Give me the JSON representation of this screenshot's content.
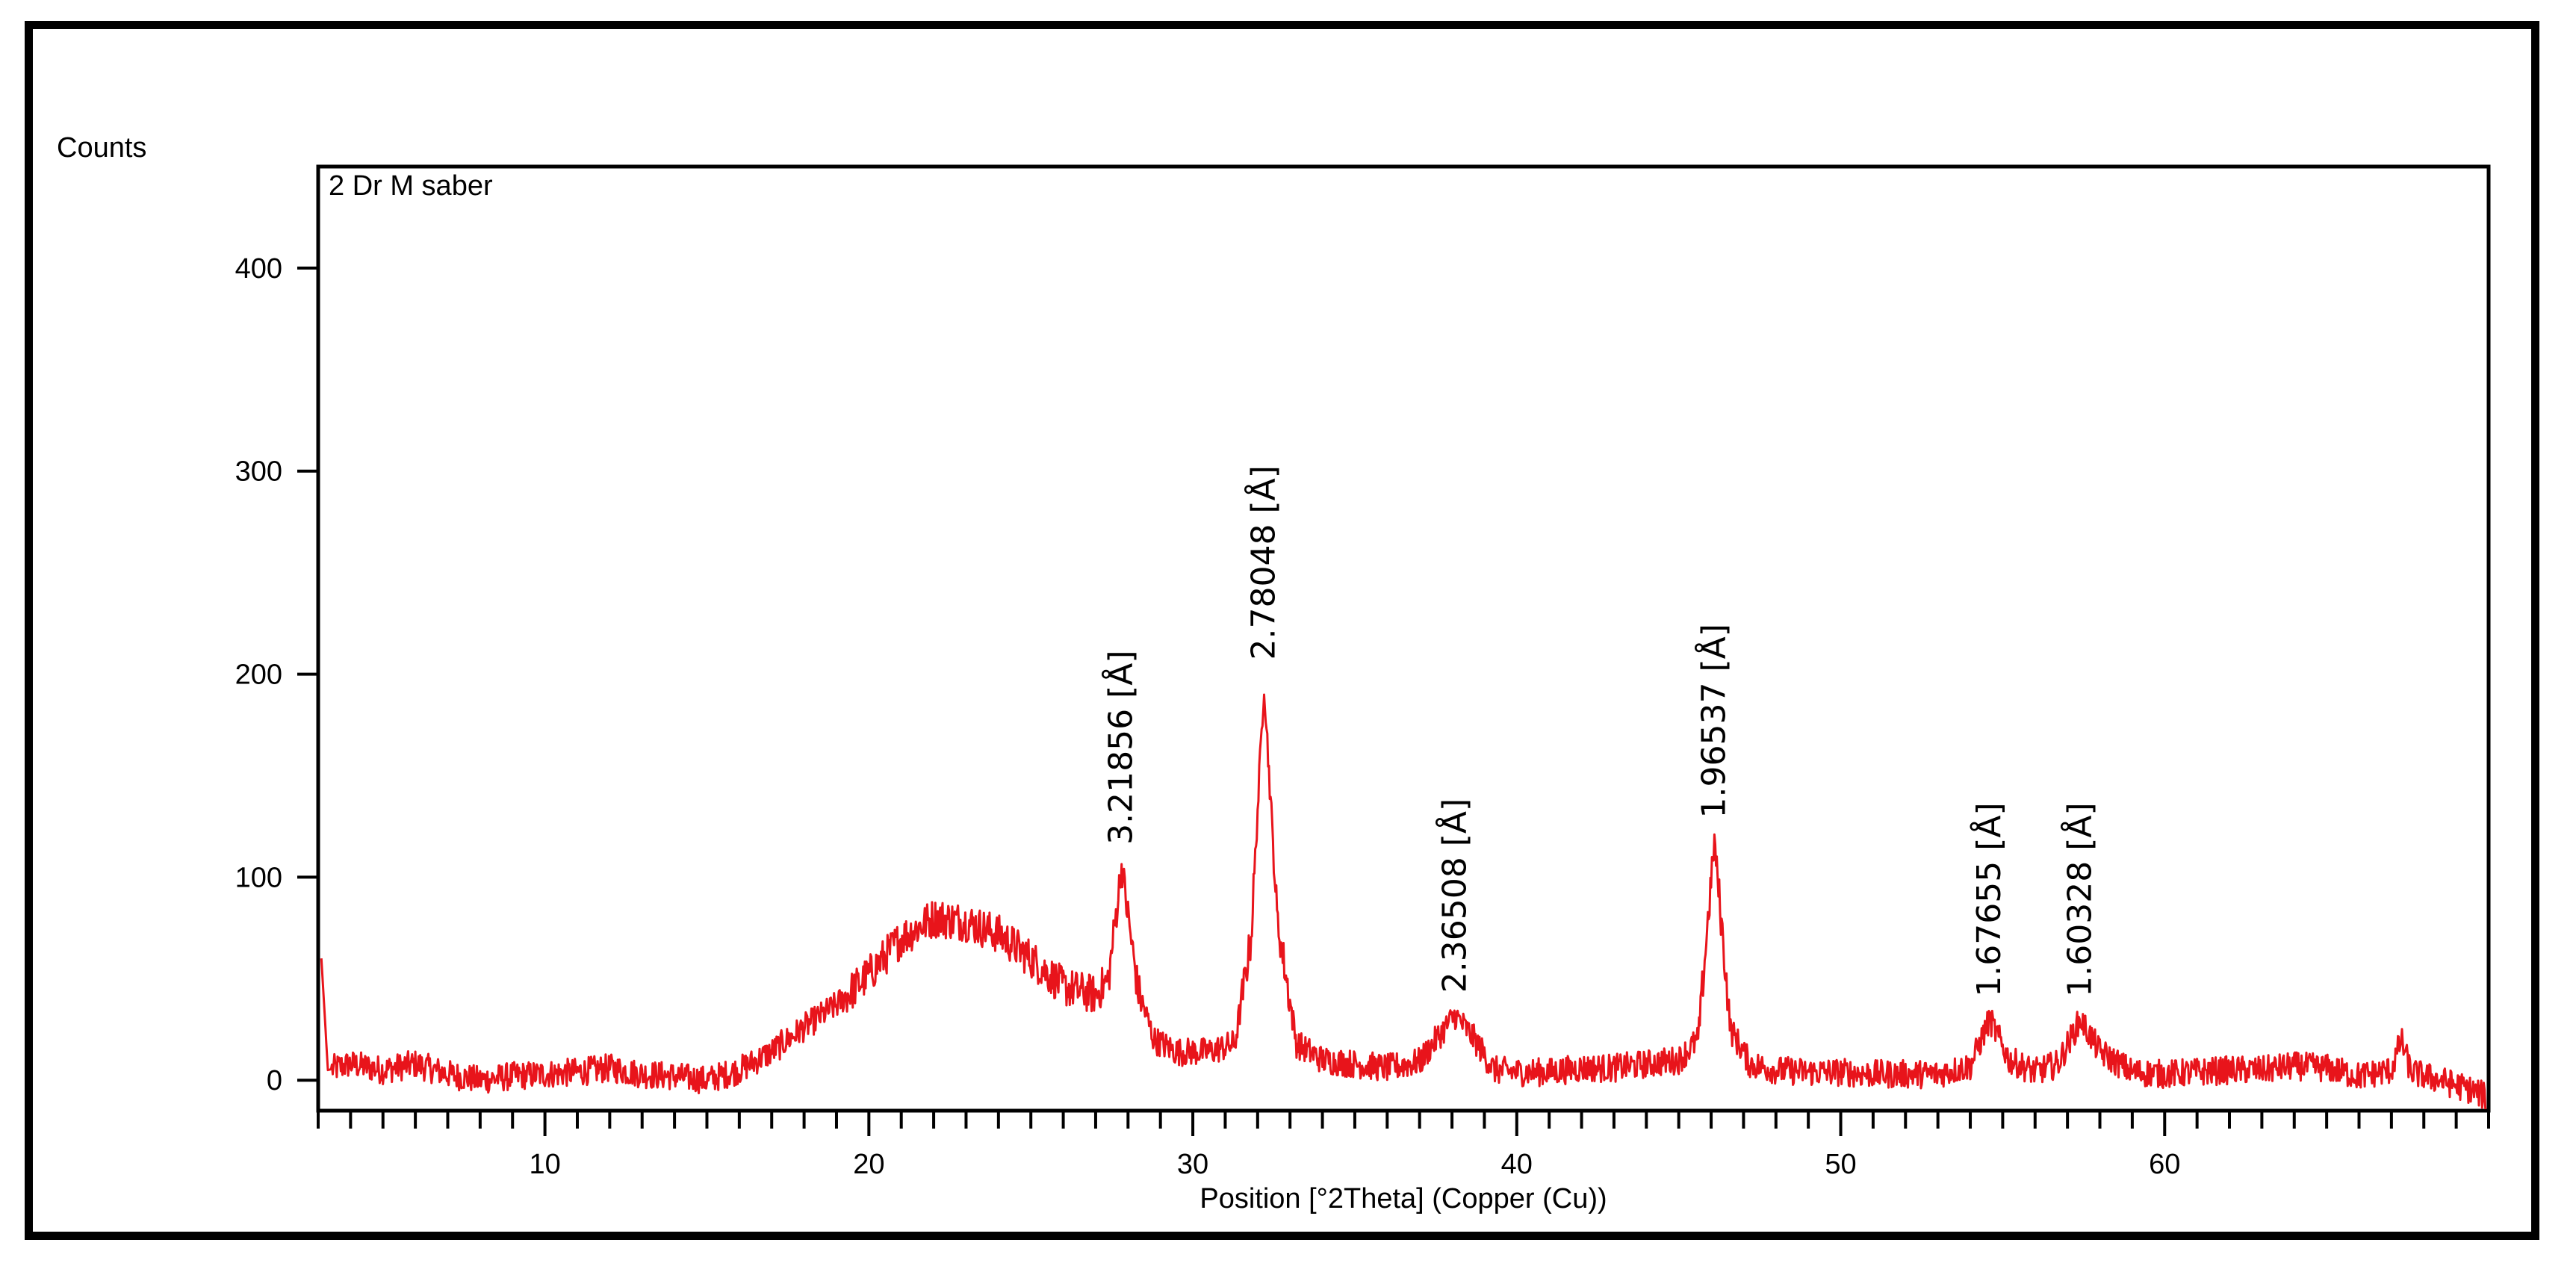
{
  "chart_data": {
    "type": "line",
    "ylabel": "Counts",
    "xlabel": "Position [°2Theta] (Copper (Cu))",
    "sample_name": "2 Dr M saber",
    "xlim": [
      3,
      70
    ],
    "ylim": [
      -15,
      450
    ],
    "x_ticks": [
      10,
      20,
      30,
      40,
      50,
      60
    ],
    "y_ticks": [
      0,
      100,
      200,
      300,
      400
    ],
    "x_tick_labels": [
      "10",
      "20",
      "30",
      "40",
      "50",
      "60"
    ],
    "y_tick_labels": [
      "0",
      "100",
      "200",
      "300",
      "400"
    ],
    "line_color": "#e8141b",
    "grid": false,
    "baseline": [
      [
        3.1,
        60
      ],
      [
        3.3,
        5
      ],
      [
        4,
        8
      ],
      [
        5,
        5
      ],
      [
        6,
        8
      ],
      [
        7,
        3
      ],
      [
        8,
        0
      ],
      [
        9,
        2
      ],
      [
        10,
        3
      ],
      [
        11,
        4
      ],
      [
        12,
        6
      ],
      [
        13,
        3
      ],
      [
        14,
        2
      ],
      [
        15,
        0
      ],
      [
        16,
        5
      ],
      [
        17,
        14
      ],
      [
        18,
        26
      ],
      [
        19,
        37
      ],
      [
        20,
        52
      ],
      [
        21,
        70
      ],
      [
        22,
        80
      ],
      [
        23,
        78
      ],
      [
        24,
        72
      ],
      [
        25,
        60
      ],
      [
        26,
        46
      ],
      [
        27,
        42
      ],
      [
        27.4,
        50
      ],
      [
        27.8,
        105
      ],
      [
        28.3,
        45
      ],
      [
        28.8,
        20
      ],
      [
        29.5,
        14
      ],
      [
        30.5,
        14
      ],
      [
        31.3,
        18
      ],
      [
        31.8,
        70
      ],
      [
        32.2,
        196
      ],
      [
        32.6,
        80
      ],
      [
        33.2,
        18
      ],
      [
        34,
        10
      ],
      [
        35,
        8
      ],
      [
        36,
        6
      ],
      [
        37,
        9
      ],
      [
        37.6,
        22
      ],
      [
        38.1,
        32
      ],
      [
        38.7,
        20
      ],
      [
        39.3,
        5
      ],
      [
        40,
        4
      ],
      [
        41,
        4
      ],
      [
        42,
        6
      ],
      [
        43,
        6
      ],
      [
        44,
        8
      ],
      [
        45,
        10
      ],
      [
        45.6,
        20
      ],
      [
        46.1,
        118
      ],
      [
        46.6,
        25
      ],
      [
        47.2,
        8
      ],
      [
        48,
        5
      ],
      [
        49,
        4
      ],
      [
        50,
        4
      ],
      [
        51,
        3
      ],
      [
        52,
        3
      ],
      [
        53,
        3
      ],
      [
        54,
        7
      ],
      [
        54.6,
        30
      ],
      [
        55.2,
        10
      ],
      [
        56,
        4
      ],
      [
        56.7,
        8
      ],
      [
        57.4,
        30
      ],
      [
        58,
        14
      ],
      [
        59,
        4
      ],
      [
        60,
        3
      ],
      [
        61,
        4
      ],
      [
        62,
        5
      ],
      [
        63,
        5
      ],
      [
        64,
        7
      ],
      [
        65,
        6
      ],
      [
        66,
        2
      ],
      [
        67,
        5
      ],
      [
        67.3,
        20
      ],
      [
        67.6,
        4
      ],
      [
        68.5,
        0
      ],
      [
        69.5,
        -5
      ],
      [
        69.9,
        -8
      ]
    ],
    "noise_amplitude": 7,
    "annotations": [
      {
        "x": 27.8,
        "text": "3.21856 [Å]"
      },
      {
        "x": 32.2,
        "text": "2.78048 [Å]"
      },
      {
        "x": 38.1,
        "text": "2.36508 [Å]"
      },
      {
        "x": 46.1,
        "text": "1.96537 [Å]"
      },
      {
        "x": 54.6,
        "text": "1.67655 [Å]"
      },
      {
        "x": 57.4,
        "text": "1.60328 [Å]"
      }
    ]
  }
}
